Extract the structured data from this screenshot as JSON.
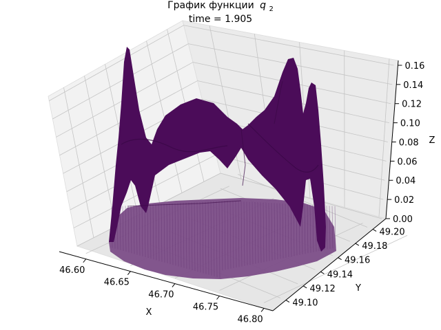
{
  "chart_data": {
    "type": "surface3d",
    "title_prefix": "График функции",
    "title_var": "q",
    "title_sub": "2",
    "subtitle": "time = 1.905",
    "xlabel": "X",
    "ylabel": "Y",
    "zlabel": "Z",
    "xlim": [
      46.57,
      46.81
    ],
    "ylim": [
      49.085,
      49.215
    ],
    "zlim": [
      0.0,
      0.165
    ],
    "xticks": [
      "46.60",
      "46.65",
      "46.70",
      "46.75",
      "46.80"
    ],
    "xtick_values": [
      46.6,
      46.65,
      46.7,
      46.75,
      46.8
    ],
    "yticks": [
      "49.10",
      "49.12",
      "49.14",
      "49.16",
      "49.18",
      "49.20"
    ],
    "ytick_values": [
      49.1,
      49.12,
      49.14,
      49.16,
      49.18,
      49.2
    ],
    "zticks": [
      "0.00",
      "0.02",
      "0.04",
      "0.06",
      "0.08",
      "0.10",
      "0.12",
      "0.14",
      "0.16"
    ],
    "ztick_values": [
      0.0,
      0.02,
      0.04,
      0.06,
      0.08,
      0.1,
      0.12,
      0.14,
      0.16
    ],
    "peaks": [
      {
        "x": 46.612,
        "y": 49.176,
        "z": 0.162
      },
      {
        "x": 46.765,
        "y": 49.191,
        "z": 0.15
      },
      {
        "x": 46.775,
        "y": 49.17,
        "z": 0.138
      }
    ],
    "surface_color": "#4b0c59",
    "base_color": "#7a4a86",
    "grid": true
  }
}
